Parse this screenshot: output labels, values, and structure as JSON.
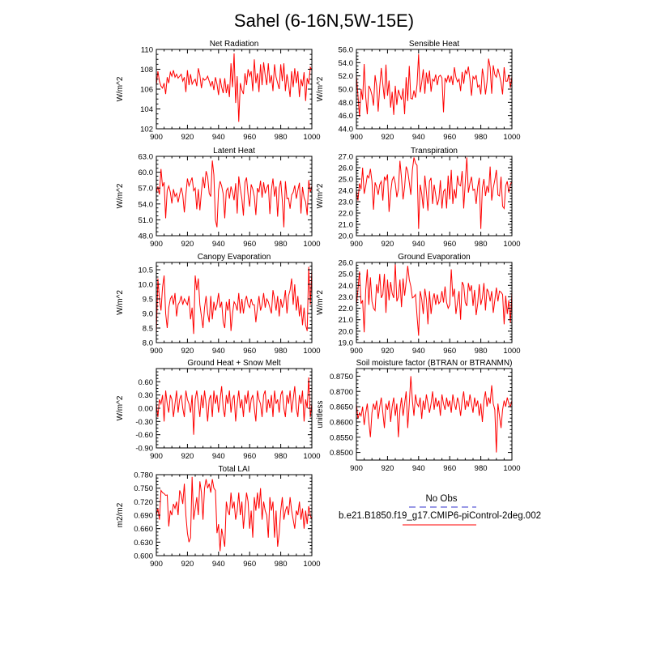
{
  "title": "Sahel (6-16N,5W-15E)",
  "series_color": "#ff0000",
  "obs_color": "#3333cc",
  "legend": {
    "obs_label": "No Obs",
    "model_label": "b.e21.B1850.f19_g17.CMIP6-piControl-2deg.002"
  },
  "chart_data": [
    {
      "type": "line",
      "title": "Net Radiation",
      "ylabel": "W/m^2",
      "xlim": [
        900,
        1000
      ],
      "ylim": [
        102,
        110
      ],
      "xticks": [
        900,
        920,
        940,
        960,
        980,
        1000
      ],
      "xtick_labels": [
        "900",
        "920",
        "940",
        "960",
        "980",
        "1000"
      ],
      "yticks": [
        102,
        104,
        106,
        108,
        110
      ],
      "ytick_labels": [
        "102",
        "104",
        "106",
        "108",
        "110"
      ],
      "x_start": 900,
      "x_step": 1,
      "values": [
        106.4,
        107.8,
        106.8,
        106.3,
        106.1,
        106.6,
        105.5,
        107.2,
        106.6,
        107.7,
        107.3,
        107.9,
        107.2,
        107.5,
        107.1,
        107.3,
        107.5,
        106.8,
        107.2,
        105.7,
        107.9,
        106.4,
        107.5,
        106.5,
        106.8,
        107.0,
        106.3,
        108.1,
        107.4,
        106.1,
        107.1,
        106.9,
        107.0,
        107.3,
        106.8,
        106.3,
        106.8,
        105.9,
        107.2,
        106.5,
        105.4,
        107.1,
        106.2,
        105.6,
        107.1,
        105.6,
        106.5,
        105.2,
        108.6,
        106.2,
        109.6,
        104.6,
        107.3,
        102.7,
        106.6,
        105.9,
        105.5,
        107.6,
        106.4,
        108.0,
        107.3,
        107.8,
        105.8,
        109.0,
        106.6,
        107.6,
        105.7,
        108.5,
        106.4,
        108.7,
        107.4,
        106.4,
        108.6,
        106.6,
        107.4,
        105.8,
        108.5,
        107.2,
        106.6,
        106.0,
        108.5,
        106.8,
        108.6,
        105.8,
        107.5,
        106.5,
        105.2,
        107.8,
        106.2,
        108.1,
        106.6,
        107.8,
        105.2,
        107.0,
        106.3,
        107.7,
        104.8,
        107.1,
        106.5,
        108.2,
        107.9
      ]
    },
    {
      "type": "line",
      "title": "Sensible Heat",
      "ylabel": "W/m^2",
      "xlim": [
        900,
        1000
      ],
      "ylim": [
        44,
        56
      ],
      "xticks": [
        900,
        920,
        940,
        960,
        980,
        1000
      ],
      "xtick_labels": [
        "900",
        "920",
        "940",
        "960",
        "980",
        "1000"
      ],
      "yticks": [
        44,
        46,
        48,
        50,
        52,
        54,
        56
      ],
      "ytick_labels": [
        "44.0",
        "46.0",
        "48.0",
        "50.0",
        "52.0",
        "54.0",
        "56.0"
      ],
      "x_start": 900,
      "x_step": 1,
      "values": [
        52.1,
        49.0,
        45.8,
        50.0,
        48.4,
        53.8,
        48.8,
        46.2,
        50.5,
        50.0,
        49.1,
        47.5,
        52.1,
        50.4,
        46.6,
        50.3,
        53.2,
        50.7,
        48.5,
        53.7,
        49.0,
        51.3,
        47.2,
        49.6,
        46.1,
        50.5,
        47.6,
        49.9,
        49.1,
        48.4,
        50.1,
        46.2,
        51.8,
        48.2,
        53.5,
        48.6,
        48.5,
        49.8,
        48.7,
        50.7,
        55.3,
        49.5,
        51.0,
        53.0,
        49.3,
        52.5,
        50.8,
        52.8,
        49.6,
        51.5,
        51.2,
        52.2,
        50.6,
        51.9,
        52.1,
        51.7,
        46.5,
        51.7,
        51.1,
        52.1,
        51.0,
        52.0,
        50.6,
        53.3,
        51.8,
        51.1,
        51.5,
        49.7,
        52.6,
        50.8,
        52.8,
        52.3,
        53.4,
        51.5,
        49.0,
        51.9,
        51.5,
        52.1,
        50.3,
        50.6,
        49.2,
        53.1,
        51.6,
        49.2,
        51.1,
        54.6,
        53.3,
        49.3,
        53.6,
        52.2,
        51.8,
        53.1,
        52.1,
        51.0,
        49.2,
        53.3,
        51.2,
        51.2,
        52.2,
        50.2,
        51.9
      ]
    },
    {
      "type": "line",
      "title": "Latent Heat",
      "ylabel": "W/m^2",
      "xlim": [
        900,
        1000
      ],
      "ylim": [
        48,
        63
      ],
      "xticks": [
        900,
        920,
        940,
        960,
        980,
        1000
      ],
      "xtick_labels": [
        "900",
        "920",
        "940",
        "960",
        "980",
        "1000"
      ],
      "yticks": [
        48,
        51,
        54,
        57,
        60,
        63
      ],
      "ytick_labels": [
        "48.0",
        "51.0",
        "54.0",
        "57.0",
        "60.0",
        "63.0"
      ],
      "x_start": 900,
      "x_step": 1,
      "values": [
        56.1,
        57.3,
        55.8,
        60.6,
        57.3,
        58.1,
        51.3,
        56.6,
        57.4,
        56.2,
        54.1,
        56.8,
        55.4,
        56.0,
        54.3,
        55.8,
        57.1,
        55.7,
        52.4,
        55.8,
        58.8,
        57.4,
        58.2,
        59.0,
        56.5,
        57.0,
        53.0,
        56.8,
        52.8,
        56.3,
        59.1,
        57.0,
        60.2,
        59.1,
        56.0,
        55.4,
        62.2,
        59.5,
        51.0,
        49.6,
        56.6,
        58.3,
        57.4,
        55.9,
        51.3,
        56.5,
        57.0,
        55.0,
        57.3,
        56.2,
        54.7,
        57.9,
        52.2,
        59.2,
        56.9,
        55.0,
        51.8,
        58.1,
        59.0,
        55.8,
        53.5,
        57.7,
        56.8,
        55.4,
        51.9,
        57.0,
        56.2,
        58.4,
        55.2,
        58.1,
        56.0,
        57.0,
        57.7,
        52.1,
        56.7,
        58.8,
        55.4,
        57.3,
        51.6,
        57.0,
        58.4,
        54.7,
        49.6,
        58.3,
        55.0,
        55.1,
        53.1,
        55.7,
        56.2,
        57.5,
        55.0,
        56.6,
        58.0,
        52.2,
        57.2,
        55.2,
        54.4,
        51.9,
        58.5,
        56.2,
        57.4
      ]
    },
    {
      "type": "line",
      "title": "Transpiration",
      "ylabel": "W/m^2",
      "xlim": [
        900,
        1000
      ],
      "ylim": [
        20,
        27
      ],
      "xticks": [
        900,
        920,
        940,
        960,
        980,
        1000
      ],
      "xtick_labels": [
        "900",
        "920",
        "940",
        "960",
        "980",
        "1000"
      ],
      "yticks": [
        20,
        21,
        22,
        23,
        24,
        25,
        26,
        27
      ],
      "ytick_labels": [
        "20.0",
        "21.0",
        "22.0",
        "23.0",
        "24.0",
        "25.0",
        "26.0",
        "27.0"
      ],
      "x_start": 900,
      "x_step": 1,
      "values": [
        24.0,
        23.1,
        24.6,
        24.1,
        26.0,
        23.7,
        24.4,
        25.3,
        25.1,
        25.9,
        24.8,
        22.3,
        24.7,
        24.3,
        23.6,
        24.5,
        24.8,
        23.1,
        25.2,
        24.9,
        25.4,
        22.1,
        23.8,
        24.9,
        25.2,
        24.6,
        23.4,
        24.1,
        26.6,
        25.1,
        23.2,
        24.3,
        26.1,
        25.7,
        24.7,
        23.6,
        25.8,
        26.9,
        26.4,
        26.2,
        20.6,
        24.5,
        23.7,
        22.4,
        25.3,
        23.9,
        22.2,
        24.8,
        25.1,
        22.8,
        24.5,
        23.6,
        22.7,
        23.2,
        24.9,
        22.4,
        23.9,
        24.1,
        22.4,
        25.3,
        23.2,
        25.8,
        22.8,
        24.1,
        23.3,
        25.3,
        24.5,
        24.4,
        25.7,
        22.4,
        24.7,
        26.9,
        23.8,
        24.6,
        25.2,
        24.0,
        24.1,
        22.8,
        24.3,
        25.1,
        20.6,
        24.2,
        25.0,
        23.5,
        24.4,
        23.8,
        26.1,
        23.1,
        24.2,
        24.9,
        25.8,
        23.6,
        23.5,
        25.2,
        22.6,
        22.4,
        24.4,
        24.8,
        23.8,
        24.5,
        24.8
      ]
    },
    {
      "type": "line",
      "title": "Canopy Evaporation",
      "ylabel": "W/m^2",
      "xlim": [
        900,
        1000
      ],
      "ylim": [
        8,
        10.75
      ],
      "xticks": [
        900,
        920,
        940,
        960,
        980,
        1000
      ],
      "xtick_labels": [
        "900",
        "920",
        "940",
        "960",
        "980",
        "1000"
      ],
      "yticks": [
        8.0,
        8.5,
        9.0,
        9.5,
        10.0,
        10.5
      ],
      "ytick_labels": [
        "8.0",
        "8.5",
        "9.0",
        "9.5",
        "10.0",
        "10.5"
      ],
      "x_start": 900,
      "x_step": 1,
      "values": [
        8.3,
        10.2,
        9.5,
        9.1,
        9.9,
        10.3,
        9.0,
        8.5,
        9.2,
        9.5,
        9.6,
        9.3,
        9.7,
        8.9,
        9.3,
        9.4,
        9.6,
        9.3,
        9.5,
        9.4,
        9.3,
        9.6,
        8.8,
        9.2,
        8.3,
        10.3,
        9.8,
        10.2,
        9.3,
        8.9,
        8.5,
        9.2,
        9.6,
        9.0,
        8.7,
        9.6,
        8.8,
        9.4,
        9.1,
        9.3,
        9.7,
        9.2,
        9.4,
        8.7,
        8.5,
        9.4,
        9.1,
        9.5,
        8.4,
        9.0,
        9.4,
        9.3,
        9.1,
        9.7,
        9.0,
        9.5,
        9.0,
        9.4,
        9.6,
        9.3,
        9.2,
        9.5,
        9.3,
        9.3,
        8.7,
        9.2,
        9.6,
        9.1,
        9.3,
        9.7,
        9.2,
        9.5,
        9.4,
        9.2,
        9.0,
        9.8,
        9.5,
        9.1,
        9.6,
        8.9,
        9.5,
        9.2,
        9.4,
        9.8,
        9.0,
        9.6,
        9.8,
        10.2,
        9.3,
        10.0,
        9.1,
        9.6,
        8.9,
        9.3,
        8.6,
        9.2,
        8.6,
        8.4,
        10.6,
        9.3,
        10.5
      ]
    },
    {
      "type": "line",
      "title": "Ground Evaporation",
      "ylabel": "W/m^2",
      "xlim": [
        900,
        1000
      ],
      "ylim": [
        19,
        26
      ],
      "xticks": [
        900,
        920,
        940,
        960,
        980,
        1000
      ],
      "xtick_labels": [
        "900",
        "920",
        "940",
        "960",
        "980",
        "1000"
      ],
      "yticks": [
        19,
        20,
        21,
        22,
        23,
        24,
        25,
        26
      ],
      "ytick_labels": [
        "19.0",
        "20.0",
        "21.0",
        "22.0",
        "23.0",
        "24.0",
        "25.0",
        "26.0"
      ],
      "x_start": 900,
      "x_step": 1,
      "values": [
        22.3,
        23.6,
        25.2,
        22.4,
        22.7,
        19.9,
        23.6,
        25.4,
        22.3,
        24.7,
        22.6,
        22.0,
        21.8,
        24.1,
        23.3,
        25.0,
        22.9,
        23.2,
        25.0,
        21.6,
        24.5,
        22.7,
        24.3,
        23.3,
        22.9,
        25.9,
        22.6,
        23.0,
        24.5,
        22.1,
        24.6,
        23.1,
        24.3,
        25.7,
        24.5,
        23.9,
        22.9,
        23.0,
        23.2,
        21.3,
        19.6,
        23.5,
        22.8,
        21.5,
        23.7,
        22.8,
        20.6,
        23.5,
        21.5,
        22.7,
        23.3,
        22.3,
        23.2,
        22.4,
        22.6,
        23.5,
        22.5,
        23.9,
        22.5,
        22.0,
        22.3,
        25.4,
        23.0,
        23.7,
        21.5,
        22.5,
        23.5,
        21.0,
        24.3,
        24.0,
        22.5,
        22.2,
        24.2,
        23.5,
        24.0,
        22.2,
        23.6,
        21.4,
        22.4,
        24.1,
        22.3,
        22.9,
        24.2,
        21.8,
        23.7,
        23.4,
        22.6,
        23.5,
        21.6,
        22.7,
        23.8,
        22.6,
        23.5,
        23.4,
        23.2,
        20.6,
        23.1,
        21.5,
        22.7,
        20.7,
        23.4
      ]
    },
    {
      "type": "line",
      "title": "Ground Heat + Snow Melt",
      "ylabel": "W/m^2",
      "xlim": [
        900,
        1000
      ],
      "ylim": [
        -0.9,
        0.9
      ],
      "xticks": [
        900,
        920,
        940,
        960,
        980,
        1000
      ],
      "xtick_labels": [
        "900",
        "920",
        "940",
        "960",
        "980",
        "1000"
      ],
      "yticks": [
        -0.9,
        -0.6,
        -0.3,
        0.0,
        0.3,
        0.6
      ],
      "ytick_labels": [
        "-0.90",
        "-0.60",
        "-0.30",
        "0.00",
        "0.30",
        "0.60"
      ],
      "x_start": 900,
      "x_step": 1,
      "values": [
        0.1,
        -0.2,
        0.2,
        0.1,
        0.3,
        -0.3,
        0.4,
        0.1,
        -0.1,
        0.3,
        0.2,
        -0.2,
        0.1,
        0.4,
        -0.1,
        0.2,
        0.3,
        0.0,
        -0.2,
        0.4,
        0.2,
        0.1,
        -0.1,
        0.3,
        -0.6,
        0.2,
        0.4,
        0.1,
        -0.2,
        0.3,
        0.0,
        0.4,
        0.1,
        -0.3,
        0.2,
        0.3,
        -0.2,
        0.4,
        0.1,
        0.3,
        -0.1,
        0.2,
        0.5,
        0.0,
        -0.2,
        0.3,
        0.1,
        0.4,
        -0.1,
        0.2,
        0.3,
        -0.3,
        0.1,
        0.4,
        0.0,
        0.2,
        -0.2,
        0.3,
        0.1,
        0.4,
        -0.1,
        0.2,
        0.3,
        0.0,
        -0.3,
        0.4,
        0.2,
        0.1,
        -0.2,
        0.3,
        0.4,
        -0.1,
        0.2,
        0.0,
        0.3,
        -0.2,
        0.4,
        0.1,
        0.2,
        -0.1,
        0.3,
        0.4,
        0.0,
        -0.2,
        0.3,
        0.1,
        0.4,
        -0.1,
        0.2,
        0.5,
        0.0,
        -0.2,
        0.3,
        0.1,
        0.4,
        -0.3,
        0.2,
        0.0,
        0.7,
        -0.2,
        0.1
      ]
    },
    {
      "type": "line",
      "title": "Soil moisture factor (BTRAN or BTRANMN)",
      "ylabel": "unitless",
      "xlim": [
        900,
        1000
      ],
      "ylim": [
        0.8475,
        0.8775
      ],
      "xticks": [
        900,
        920,
        940,
        960,
        980,
        1000
      ],
      "xtick_labels": [
        "900",
        "920",
        "940",
        "960",
        "980",
        "1000"
      ],
      "yticks": [
        0.85,
        0.855,
        0.86,
        0.865,
        0.87,
        0.875
      ],
      "ytick_labels": [
        "0.8500",
        "0.8550",
        "0.8600",
        "0.8650",
        "0.8700",
        "0.8750"
      ],
      "x_start": 900,
      "x_step": 1,
      "values": [
        0.866,
        0.861,
        0.863,
        0.862,
        0.865,
        0.859,
        0.863,
        0.866,
        0.86,
        0.855,
        0.863,
        0.866,
        0.864,
        0.867,
        0.861,
        0.865,
        0.868,
        0.863,
        0.858,
        0.866,
        0.864,
        0.867,
        0.86,
        0.865,
        0.868,
        0.862,
        0.866,
        0.855,
        0.864,
        0.868,
        0.862,
        0.866,
        0.87,
        0.858,
        0.866,
        0.875,
        0.867,
        0.862,
        0.869,
        0.866,
        0.865,
        0.868,
        0.861,
        0.867,
        0.864,
        0.869,
        0.866,
        0.863,
        0.866,
        0.87,
        0.864,
        0.868,
        0.865,
        0.867,
        0.862,
        0.869,
        0.866,
        0.864,
        0.868,
        0.865,
        0.867,
        0.863,
        0.869,
        0.866,
        0.864,
        0.868,
        0.866,
        0.862,
        0.867,
        0.87,
        0.864,
        0.867,
        0.865,
        0.869,
        0.866,
        0.863,
        0.868,
        0.865,
        0.867,
        0.862,
        0.866,
        0.86,
        0.867,
        0.87,
        0.865,
        0.868,
        0.866,
        0.872,
        0.866,
        0.864,
        0.85,
        0.866,
        0.862,
        0.858,
        0.864,
        0.867,
        0.865,
        0.868,
        0.866,
        0.865,
        0.867
      ]
    },
    {
      "type": "line",
      "title": "Total LAI",
      "ylabel": "m2/m2",
      "xlim": [
        900,
        1000
      ],
      "ylim": [
        0.6,
        0.78
      ],
      "xticks": [
        900,
        920,
        940,
        960,
        980,
        1000
      ],
      "xtick_labels": [
        "900",
        "920",
        "940",
        "960",
        "980",
        "1000"
      ],
      "yticks": [
        0.6,
        0.63,
        0.66,
        0.69,
        0.72,
        0.75,
        0.78
      ],
      "ytick_labels": [
        "0.600",
        "0.630",
        "0.660",
        "0.690",
        "0.720",
        "0.750",
        "0.780"
      ],
      "x_start": 900,
      "x_step": 1,
      "values": [
        0.69,
        0.705,
        0.68,
        0.745,
        0.74,
        0.738,
        0.734,
        0.735,
        0.665,
        0.7,
        0.69,
        0.715,
        0.705,
        0.72,
        0.69,
        0.745,
        0.735,
        0.715,
        0.76,
        0.69,
        0.65,
        0.63,
        0.64,
        0.775,
        0.68,
        0.705,
        0.73,
        0.69,
        0.765,
        0.74,
        0.68,
        0.75,
        0.77,
        0.75,
        0.76,
        0.74,
        0.77,
        0.75,
        0.745,
        0.65,
        0.67,
        0.61,
        0.66,
        0.64,
        0.62,
        0.72,
        0.7,
        0.69,
        0.74,
        0.705,
        0.72,
        0.68,
        0.7,
        0.74,
        0.69,
        0.72,
        0.66,
        0.7,
        0.74,
        0.72,
        0.66,
        0.7,
        0.64,
        0.73,
        0.7,
        0.74,
        0.705,
        0.75,
        0.68,
        0.72,
        0.7,
        0.69,
        0.64,
        0.73,
        0.7,
        0.72,
        0.64,
        0.7,
        0.62,
        0.65,
        0.7,
        0.73,
        0.68,
        0.7,
        0.71,
        0.69,
        0.73,
        0.7,
        0.68,
        0.66,
        0.7,
        0.69,
        0.72,
        0.68,
        0.705,
        0.66,
        0.7,
        0.67,
        0.71,
        0.69,
        0.68
      ]
    }
  ]
}
